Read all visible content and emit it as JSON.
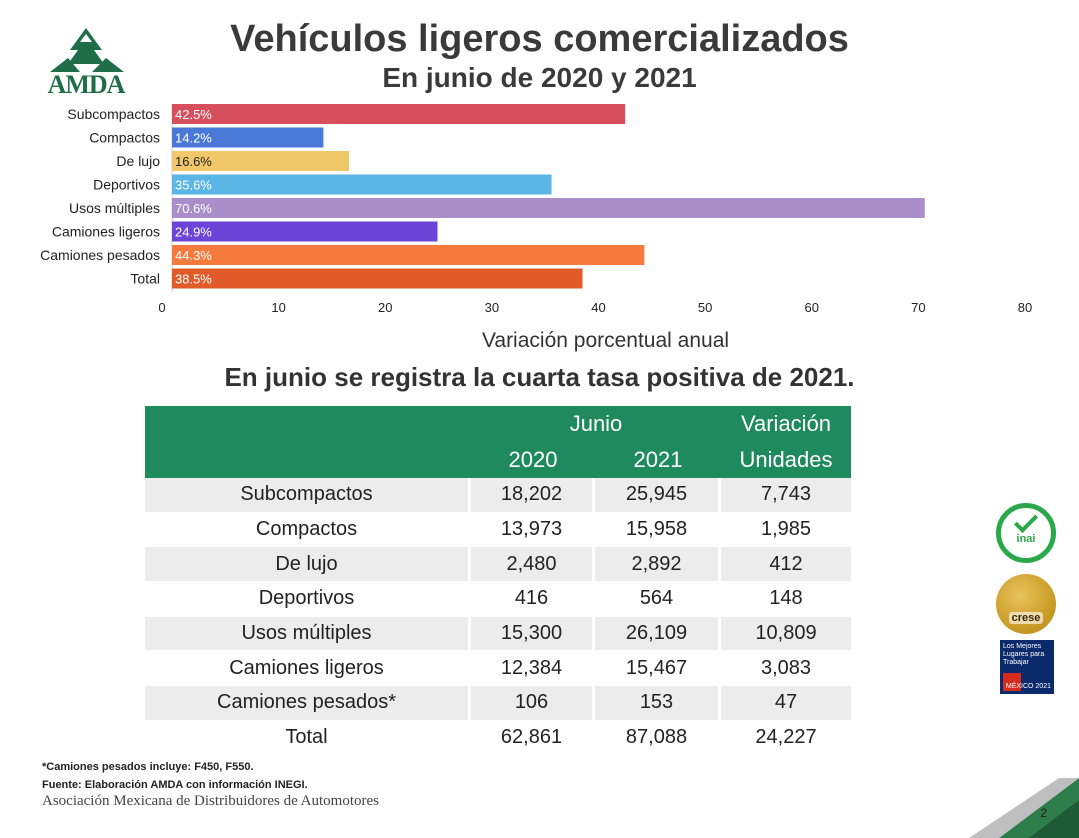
{
  "header": {
    "title": "Vehículos ligeros comercializados",
    "subtitle": "En junio de 2020 y 2021",
    "logo_text": "AMDA"
  },
  "chart_data": {
    "type": "bar",
    "orientation": "horizontal",
    "categories": [
      "Subcompactos",
      "Compactos",
      "De lujo",
      "Deportivos",
      "Usos múltiples",
      "Camiones ligeros",
      "Camiones pesados",
      "Total"
    ],
    "values": [
      42.5,
      14.2,
      16.6,
      35.6,
      70.6,
      24.9,
      44.3,
      38.5
    ],
    "value_labels": [
      "42.5%",
      "14.2%",
      "16.6%",
      "35.6%",
      "70.6%",
      "24.9%",
      "44.3%",
      "38.5%"
    ],
    "colors": [
      "#d64f5a",
      "#4a78d6",
      "#f0c86a",
      "#5bb6e6",
      "#a98ec9",
      "#6a45d8",
      "#f57a3c",
      "#e05a2a"
    ],
    "xlabel": "Variación porcentual anual",
    "xlim": [
      0,
      80
    ],
    "xticks": [
      0,
      10,
      20,
      30,
      40,
      50,
      60,
      70,
      80
    ]
  },
  "headline": "En junio se registra la cuarta tasa positiva de 2021.",
  "table": {
    "header_group": "Junio",
    "header_var_line1": "Variación",
    "header_var_line2": "Unidades",
    "header_2020": "2020",
    "header_2021": "2021",
    "rows": [
      {
        "label": "Subcompactos",
        "y2020": "18,202",
        "y2021": "25,945",
        "var": "7,743"
      },
      {
        "label": "Compactos",
        "y2020": "13,973",
        "y2021": "15,958",
        "var": "1,985"
      },
      {
        "label": "De lujo",
        "y2020": "2,480",
        "y2021": "2,892",
        "var": "412"
      },
      {
        "label": "Deportivos",
        "y2020": "416",
        "y2021": "564",
        "var": "148"
      },
      {
        "label": "Usos múltiples",
        "y2020": "15,300",
        "y2021": "26,109",
        "var": "10,809"
      },
      {
        "label": "Camiones ligeros",
        "y2020": "12,384",
        "y2021": "15,467",
        "var": "3,083"
      },
      {
        "label": "Camiones pesados*",
        "y2020": "106",
        "y2021": "153",
        "var": "47"
      },
      {
        "label": "Total",
        "y2020": "62,861",
        "y2021": "87,088",
        "var": "24,227"
      }
    ]
  },
  "footer": {
    "note": "*Camiones pesados incluye: F450, F550.",
    "source": "Fuente: Elaboración AMDA con información INEGI.",
    "association": "Asociación Mexicana de Distribuidores de Automotores",
    "page_number": "2"
  },
  "badges": {
    "inai": "inai",
    "crese": "crese",
    "gptw_text": "Los Mejores Lugares para Trabajar",
    "gptw_year": "MÉXICO 2021"
  }
}
